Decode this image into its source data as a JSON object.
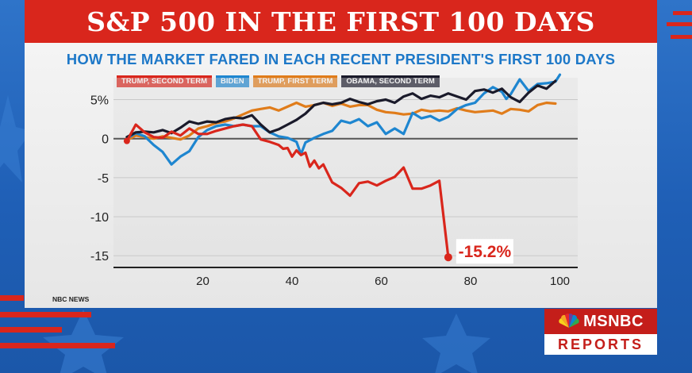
{
  "header": {
    "title": "S&P 500 IN THE FIRST 100 DAYS"
  },
  "source": "NBC NEWS",
  "logo": {
    "network": "MSNBC",
    "program": "REPORTS"
  },
  "colors": {
    "trump_second": "#d9261c",
    "biden": "#1e86d0",
    "trump_first": "#e07c1a",
    "obama_second": "#1a1a2a",
    "title_band": "#d9261c",
    "subtitle": "#1d78c8"
  },
  "chart_data": {
    "type": "line",
    "title": "HOW THE MARKET FARED IN EACH RECENT PRESIDENT'S FIRST 100 DAYS",
    "xlabel": "",
    "ylabel": "",
    "xlim": [
      0,
      104
    ],
    "ylim": [
      -16.5,
      7.8
    ],
    "x_ticks": [
      20,
      40,
      60,
      80,
      100
    ],
    "y_ticks": [
      5,
      0,
      -5,
      -10,
      -15
    ],
    "y_tick_labels": [
      "5%",
      "0",
      "-5",
      "-10",
      "-15"
    ],
    "grid": "horizontal",
    "legend_position": "top-left",
    "annotation": {
      "text": "-15.2%",
      "x": 75,
      "y": -15.2
    },
    "series": [
      {
        "name": "TRUMP, SECOND TERM",
        "color": "#d9261c",
        "x": [
          3,
          5,
          7,
          9,
          11,
          13,
          15,
          17,
          19,
          21,
          23,
          25,
          27,
          29,
          31,
          33,
          35,
          37,
          38,
          39,
          40,
          41,
          42,
          43,
          44,
          45,
          46,
          47,
          49,
          51,
          52,
          53,
          55,
          57,
          59,
          61,
          63,
          65,
          67,
          69,
          71,
          73,
          75
        ],
        "y": [
          -0.3,
          1.8,
          0.8,
          0.2,
          0.1,
          0.9,
          0.4,
          1.3,
          0.6,
          0.6,
          1.0,
          1.3,
          1.6,
          1.8,
          1.6,
          -0.1,
          -0.4,
          -0.8,
          -1.3,
          -1.2,
          -2.3,
          -1.5,
          -2.1,
          -1.8,
          -3.6,
          -2.8,
          -3.8,
          -3.3,
          -5.6,
          -6.3,
          -6.8,
          -7.3,
          -5.7,
          -5.5,
          -6.0,
          -5.4,
          -4.9,
          -3.7,
          -6.4,
          -6.4,
          -6.0,
          -5.4,
          -15.2
        ]
      },
      {
        "name": "BIDEN",
        "color": "#1e86d0",
        "x": [
          3,
          5,
          7,
          9,
          11,
          13,
          15,
          17,
          19,
          21,
          23,
          25,
          27,
          29,
          31,
          33,
          35,
          37,
          39,
          41,
          42,
          43,
          45,
          47,
          49,
          51,
          53,
          55,
          57,
          59,
          61,
          63,
          65,
          67,
          69,
          71,
          73,
          75,
          77,
          79,
          81,
          83,
          85,
          87,
          88,
          89,
          91,
          93,
          95,
          97,
          99,
          100
        ],
        "y": [
          0.0,
          0.7,
          0.3,
          -0.8,
          -1.7,
          -3.3,
          -2.3,
          -1.6,
          0.2,
          1.1,
          1.6,
          1.8,
          1.6,
          1.8,
          1.6,
          1.6,
          0.8,
          0.3,
          0.1,
          -0.4,
          -2.0,
          -0.5,
          0.1,
          0.6,
          1.0,
          2.3,
          2.0,
          2.5,
          1.6,
          2.1,
          0.6,
          1.3,
          0.6,
          3.3,
          2.6,
          2.9,
          2.3,
          2.8,
          3.8,
          4.3,
          4.6,
          5.8,
          6.6,
          6.0,
          5.1,
          5.7,
          7.6,
          6.1,
          7.0,
          7.1,
          7.3,
          8.2
        ]
      },
      {
        "name": "TRUMP, FIRST TERM",
        "color": "#e07c1a",
        "x": [
          3,
          5,
          7,
          9,
          11,
          13,
          15,
          17,
          19,
          21,
          23,
          25,
          27,
          29,
          31,
          33,
          35,
          37,
          39,
          41,
          43,
          45,
          47,
          49,
          51,
          53,
          55,
          57,
          59,
          61,
          63,
          65,
          67,
          69,
          71,
          73,
          75,
          77,
          79,
          81,
          83,
          85,
          87,
          89,
          91,
          93,
          95,
          97,
          99
        ],
        "y": [
          -0.2,
          0.4,
          0.2,
          0.0,
          0.3,
          0.1,
          -0.1,
          0.4,
          1.3,
          1.6,
          2.0,
          2.2,
          2.6,
          3.1,
          3.6,
          3.8,
          4.0,
          3.6,
          4.1,
          4.6,
          4.1,
          4.3,
          4.6,
          4.2,
          4.5,
          4.1,
          4.3,
          4.3,
          3.7,
          3.4,
          3.3,
          3.1,
          3.2,
          3.7,
          3.5,
          3.6,
          3.5,
          3.9,
          3.6,
          3.4,
          3.5,
          3.6,
          3.2,
          3.8,
          3.7,
          3.5,
          4.3,
          4.6,
          4.5
        ]
      },
      {
        "name": "OBAMA, SECOND TERM",
        "color": "#1a1a2a",
        "x": [
          3,
          5,
          7,
          9,
          11,
          13,
          15,
          17,
          19,
          21,
          23,
          25,
          27,
          29,
          31,
          33,
          35,
          37,
          39,
          41,
          43,
          45,
          47,
          49,
          51,
          53,
          55,
          57,
          59,
          61,
          63,
          65,
          67,
          69,
          71,
          73,
          75,
          77,
          79,
          81,
          83,
          85,
          87,
          89,
          91,
          93,
          95,
          97,
          99
        ],
        "y": [
          0.2,
          0.8,
          0.9,
          0.8,
          1.1,
          0.7,
          1.4,
          2.2,
          1.9,
          2.2,
          2.1,
          2.5,
          2.7,
          2.6,
          3.0,
          1.8,
          0.8,
          1.2,
          1.8,
          2.4,
          3.2,
          4.3,
          4.6,
          4.4,
          4.6,
          5.1,
          4.7,
          4.4,
          4.8,
          5.0,
          4.6,
          5.4,
          5.8,
          5.1,
          5.5,
          5.3,
          5.8,
          5.4,
          5.0,
          6.1,
          6.3,
          5.9,
          6.4,
          5.3,
          4.7,
          5.9,
          6.8,
          6.4,
          7.4
        ]
      }
    ]
  }
}
